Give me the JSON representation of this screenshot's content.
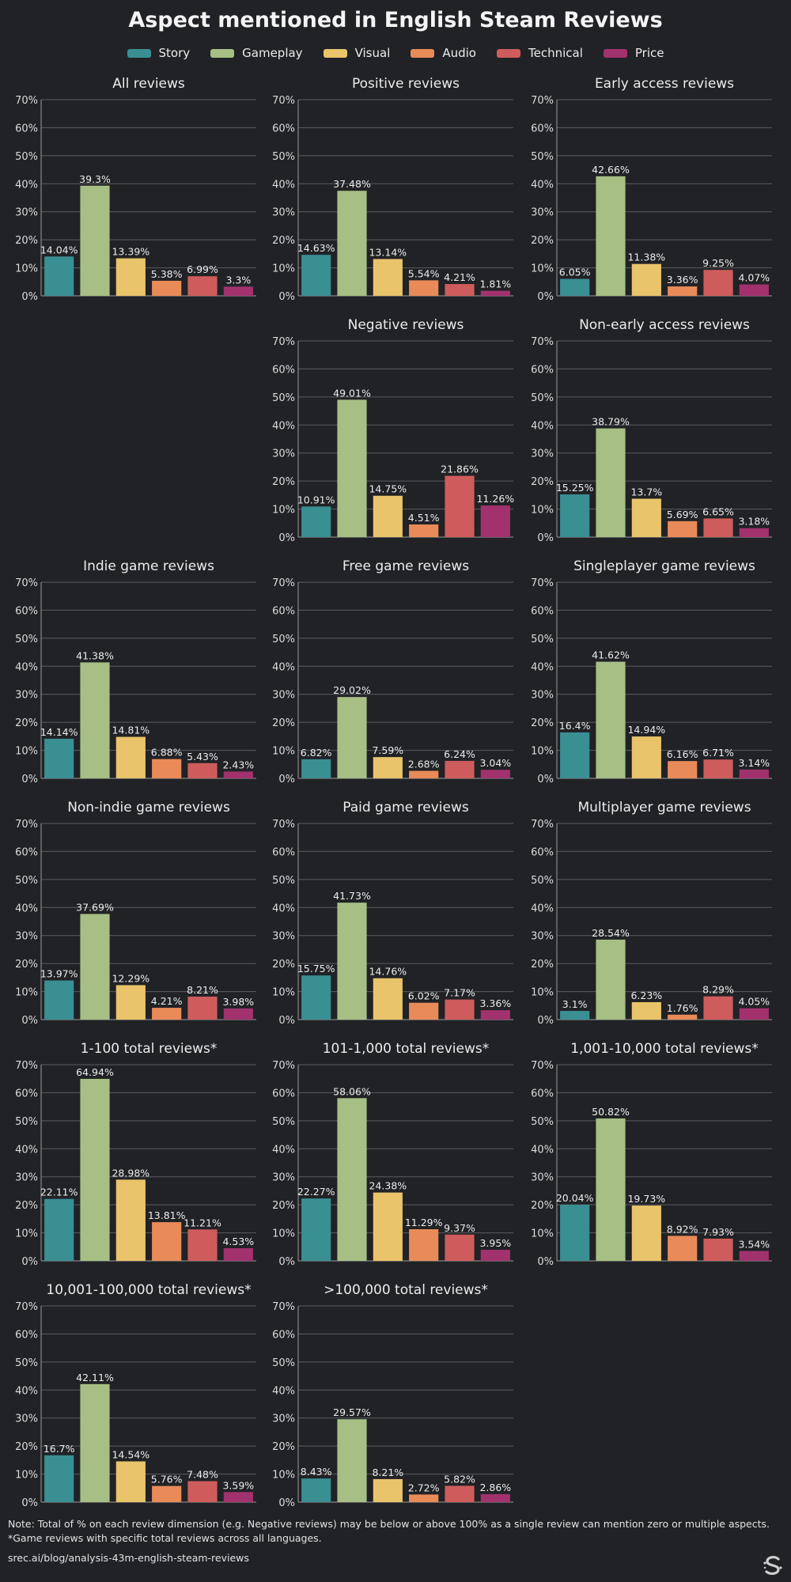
{
  "title": "Aspect mentioned in English Steam Reviews",
  "legend": [
    {
      "name": "Story",
      "color": "#3a8f93"
    },
    {
      "name": "Gameplay",
      "color": "#a7bf84"
    },
    {
      "name": "Visual",
      "color": "#e9c46a"
    },
    {
      "name": "Audio",
      "color": "#e98b58"
    },
    {
      "name": "Technical",
      "color": "#cf5c5c"
    },
    {
      "name": "Price",
      "color": "#a2326e"
    }
  ],
  "chart_data": [
    {
      "type": "bar",
      "title": "All reviews",
      "categories": [
        "Story",
        "Gameplay",
        "Visual",
        "Audio",
        "Technical",
        "Price"
      ],
      "values": [
        14.04,
        39.3,
        13.39,
        5.38,
        6.99,
        3.3
      ],
      "labels": [
        "14.04%",
        "39.3%",
        "13.39%",
        "5.38%",
        "6.99%",
        "3.3%"
      ],
      "ylim": [
        0,
        70
      ],
      "yticks": [
        "0%",
        "10%",
        "20%",
        "30%",
        "40%",
        "50%",
        "60%",
        "70%"
      ],
      "grid": true
    },
    {
      "type": "bar",
      "title": "Positive reviews",
      "categories": [
        "Story",
        "Gameplay",
        "Visual",
        "Audio",
        "Technical",
        "Price"
      ],
      "values": [
        14.63,
        37.48,
        13.14,
        5.54,
        4.21,
        1.81
      ],
      "labels": [
        "14.63%",
        "37.48%",
        "13.14%",
        "5.54%",
        "4.21%",
        "1.81%"
      ],
      "ylim": [
        0,
        70
      ],
      "yticks": [
        "0%",
        "10%",
        "20%",
        "30%",
        "40%",
        "50%",
        "60%",
        "70%"
      ],
      "grid": true
    },
    {
      "type": "bar",
      "title": "Early access reviews",
      "categories": [
        "Story",
        "Gameplay",
        "Visual",
        "Audio",
        "Technical",
        "Price"
      ],
      "values": [
        6.05,
        42.66,
        11.38,
        3.36,
        9.25,
        4.07
      ],
      "labels": [
        "6.05%",
        "42.66%",
        "11.38%",
        "3.36%",
        "9.25%",
        "4.07%"
      ],
      "ylim": [
        0,
        70
      ],
      "yticks": [
        "0%",
        "10%",
        "20%",
        "30%",
        "40%",
        "50%",
        "60%",
        "70%"
      ],
      "grid": true
    },
    {
      "type": "bar",
      "title": "Negative reviews",
      "categories": [
        "Story",
        "Gameplay",
        "Visual",
        "Audio",
        "Technical",
        "Price"
      ],
      "values": [
        10.91,
        49.01,
        14.75,
        4.51,
        21.86,
        11.26
      ],
      "labels": [
        "10.91%",
        "49.01%",
        "14.75%",
        "4.51%",
        "21.86%",
        "11.26%"
      ],
      "ylim": [
        0,
        70
      ],
      "yticks": [
        "0%",
        "10%",
        "20%",
        "30%",
        "40%",
        "50%",
        "60%",
        "70%"
      ],
      "grid": true
    },
    {
      "type": "bar",
      "title": "Non-early access reviews",
      "categories": [
        "Story",
        "Gameplay",
        "Visual",
        "Audio",
        "Technical",
        "Price"
      ],
      "values": [
        15.25,
        38.79,
        13.7,
        5.69,
        6.65,
        3.18
      ],
      "labels": [
        "15.25%",
        "38.79%",
        "13.7%",
        "5.69%",
        "6.65%",
        "3.18%"
      ],
      "ylim": [
        0,
        70
      ],
      "yticks": [
        "0%",
        "10%",
        "20%",
        "30%",
        "40%",
        "50%",
        "60%",
        "70%"
      ],
      "grid": true
    },
    {
      "type": "bar",
      "title": "Indie game reviews",
      "categories": [
        "Story",
        "Gameplay",
        "Visual",
        "Audio",
        "Technical",
        "Price"
      ],
      "values": [
        14.14,
        41.38,
        14.81,
        6.88,
        5.43,
        2.43
      ],
      "labels": [
        "14.14%",
        "41.38%",
        "14.81%",
        "6.88%",
        "5.43%",
        "2.43%"
      ],
      "ylim": [
        0,
        70
      ],
      "yticks": [
        "0%",
        "10%",
        "20%",
        "30%",
        "40%",
        "50%",
        "60%",
        "70%"
      ],
      "grid": true
    },
    {
      "type": "bar",
      "title": "Free game reviews",
      "categories": [
        "Story",
        "Gameplay",
        "Visual",
        "Audio",
        "Technical",
        "Price"
      ],
      "values": [
        6.82,
        29.02,
        7.59,
        2.68,
        6.24,
        3.04
      ],
      "labels": [
        "6.82%",
        "29.02%",
        "7.59%",
        "2.68%",
        "6.24%",
        "3.04%"
      ],
      "ylim": [
        0,
        70
      ],
      "yticks": [
        "0%",
        "10%",
        "20%",
        "30%",
        "40%",
        "50%",
        "60%",
        "70%"
      ],
      "grid": true
    },
    {
      "type": "bar",
      "title": "Singleplayer game reviews",
      "categories": [
        "Story",
        "Gameplay",
        "Visual",
        "Audio",
        "Technical",
        "Price"
      ],
      "values": [
        16.4,
        41.62,
        14.94,
        6.16,
        6.71,
        3.14
      ],
      "labels": [
        "16.4%",
        "41.62%",
        "14.94%",
        "6.16%",
        "6.71%",
        "3.14%"
      ],
      "ylim": [
        0,
        70
      ],
      "yticks": [
        "0%",
        "10%",
        "20%",
        "30%",
        "40%",
        "50%",
        "60%",
        "70%"
      ],
      "grid": true
    },
    {
      "type": "bar",
      "title": "Non-indie game reviews",
      "categories": [
        "Story",
        "Gameplay",
        "Visual",
        "Audio",
        "Technical",
        "Price"
      ],
      "values": [
        13.97,
        37.69,
        12.29,
        4.21,
        8.21,
        3.98
      ],
      "labels": [
        "13.97%",
        "37.69%",
        "12.29%",
        "4.21%",
        "8.21%",
        "3.98%"
      ],
      "ylim": [
        0,
        70
      ],
      "yticks": [
        "0%",
        "10%",
        "20%",
        "30%",
        "40%",
        "50%",
        "60%",
        "70%"
      ],
      "grid": true
    },
    {
      "type": "bar",
      "title": "Paid game reviews",
      "categories": [
        "Story",
        "Gameplay",
        "Visual",
        "Audio",
        "Technical",
        "Price"
      ],
      "values": [
        15.75,
        41.73,
        14.76,
        6.02,
        7.17,
        3.36
      ],
      "labels": [
        "15.75%",
        "41.73%",
        "14.76%",
        "6.02%",
        "7.17%",
        "3.36%"
      ],
      "ylim": [
        0,
        70
      ],
      "yticks": [
        "0%",
        "10%",
        "20%",
        "30%",
        "40%",
        "50%",
        "60%",
        "70%"
      ],
      "grid": true
    },
    {
      "type": "bar",
      "title": "Multiplayer game reviews",
      "categories": [
        "Story",
        "Gameplay",
        "Visual",
        "Audio",
        "Technical",
        "Price"
      ],
      "values": [
        3.1,
        28.54,
        6.23,
        1.76,
        8.29,
        4.05
      ],
      "labels": [
        "3.1%",
        "28.54%",
        "6.23%",
        "1.76%",
        "8.29%",
        "4.05%"
      ],
      "ylim": [
        0,
        70
      ],
      "yticks": [
        "0%",
        "10%",
        "20%",
        "30%",
        "40%",
        "50%",
        "60%",
        "70%"
      ],
      "grid": true
    },
    {
      "type": "bar",
      "title": "1-100 total reviews*",
      "categories": [
        "Story",
        "Gameplay",
        "Visual",
        "Audio",
        "Technical",
        "Price"
      ],
      "values": [
        22.11,
        64.94,
        28.98,
        13.81,
        11.21,
        4.53
      ],
      "labels": [
        "22.11%",
        "64.94%",
        "28.98%",
        "13.81%",
        "11.21%",
        "4.53%"
      ],
      "ylim": [
        0,
        70
      ],
      "yticks": [
        "0%",
        "10%",
        "20%",
        "30%",
        "40%",
        "50%",
        "60%",
        "70%"
      ],
      "grid": true
    },
    {
      "type": "bar",
      "title": "101-1,000 total reviews*",
      "categories": [
        "Story",
        "Gameplay",
        "Visual",
        "Audio",
        "Technical",
        "Price"
      ],
      "values": [
        22.27,
        58.06,
        24.38,
        11.29,
        9.37,
        3.95
      ],
      "labels": [
        "22.27%",
        "58.06%",
        "24.38%",
        "11.29%",
        "9.37%",
        "3.95%"
      ],
      "ylim": [
        0,
        70
      ],
      "yticks": [
        "0%",
        "10%",
        "20%",
        "30%",
        "40%",
        "50%",
        "60%",
        "70%"
      ],
      "grid": true
    },
    {
      "type": "bar",
      "title": "1,001-10,000 total reviews*",
      "categories": [
        "Story",
        "Gameplay",
        "Visual",
        "Audio",
        "Technical",
        "Price"
      ],
      "values": [
        20.04,
        50.82,
        19.73,
        8.92,
        7.93,
        3.54
      ],
      "labels": [
        "20.04%",
        "50.82%",
        "19.73%",
        "8.92%",
        "7.93%",
        "3.54%"
      ],
      "ylim": [
        0,
        70
      ],
      "yticks": [
        "0%",
        "10%",
        "20%",
        "30%",
        "40%",
        "50%",
        "60%",
        "70%"
      ],
      "grid": true
    },
    {
      "type": "bar",
      "title": "10,001-100,000 total reviews*",
      "categories": [
        "Story",
        "Gameplay",
        "Visual",
        "Audio",
        "Technical",
        "Price"
      ],
      "values": [
        16.7,
        42.11,
        14.54,
        5.76,
        7.48,
        3.59
      ],
      "labels": [
        "16.7%",
        "42.11%",
        "14.54%",
        "5.76%",
        "7.48%",
        "3.59%"
      ],
      "ylim": [
        0,
        70
      ],
      "yticks": [
        "0%",
        "10%",
        "20%",
        "30%",
        "40%",
        "50%",
        "60%",
        "70%"
      ],
      "grid": true
    },
    {
      "type": "bar",
      "title": ">100,000 total reviews*",
      "categories": [
        "Story",
        "Gameplay",
        "Visual",
        "Audio",
        "Technical",
        "Price"
      ],
      "values": [
        8.43,
        29.57,
        8.21,
        2.72,
        5.82,
        2.86
      ],
      "labels": [
        "8.43%",
        "29.57%",
        "8.21%",
        "2.72%",
        "5.82%",
        "2.86%"
      ],
      "ylim": [
        0,
        70
      ],
      "yticks": [
        "0%",
        "10%",
        "20%",
        "30%",
        "40%",
        "50%",
        "60%",
        "70%"
      ],
      "grid": true
    }
  ],
  "footer": {
    "note_line1": "Note: Total of % on each review dimension (e.g. Negative reviews) may be below or above 100% as a single review can mention zero or multiple aspects.",
    "note_line2": "*Game reviews with specific total reviews across all languages.",
    "source": "srec.ai/blog/analysis-43m-english-steam-reviews",
    "logo_icon": "srec-logo-icon"
  }
}
